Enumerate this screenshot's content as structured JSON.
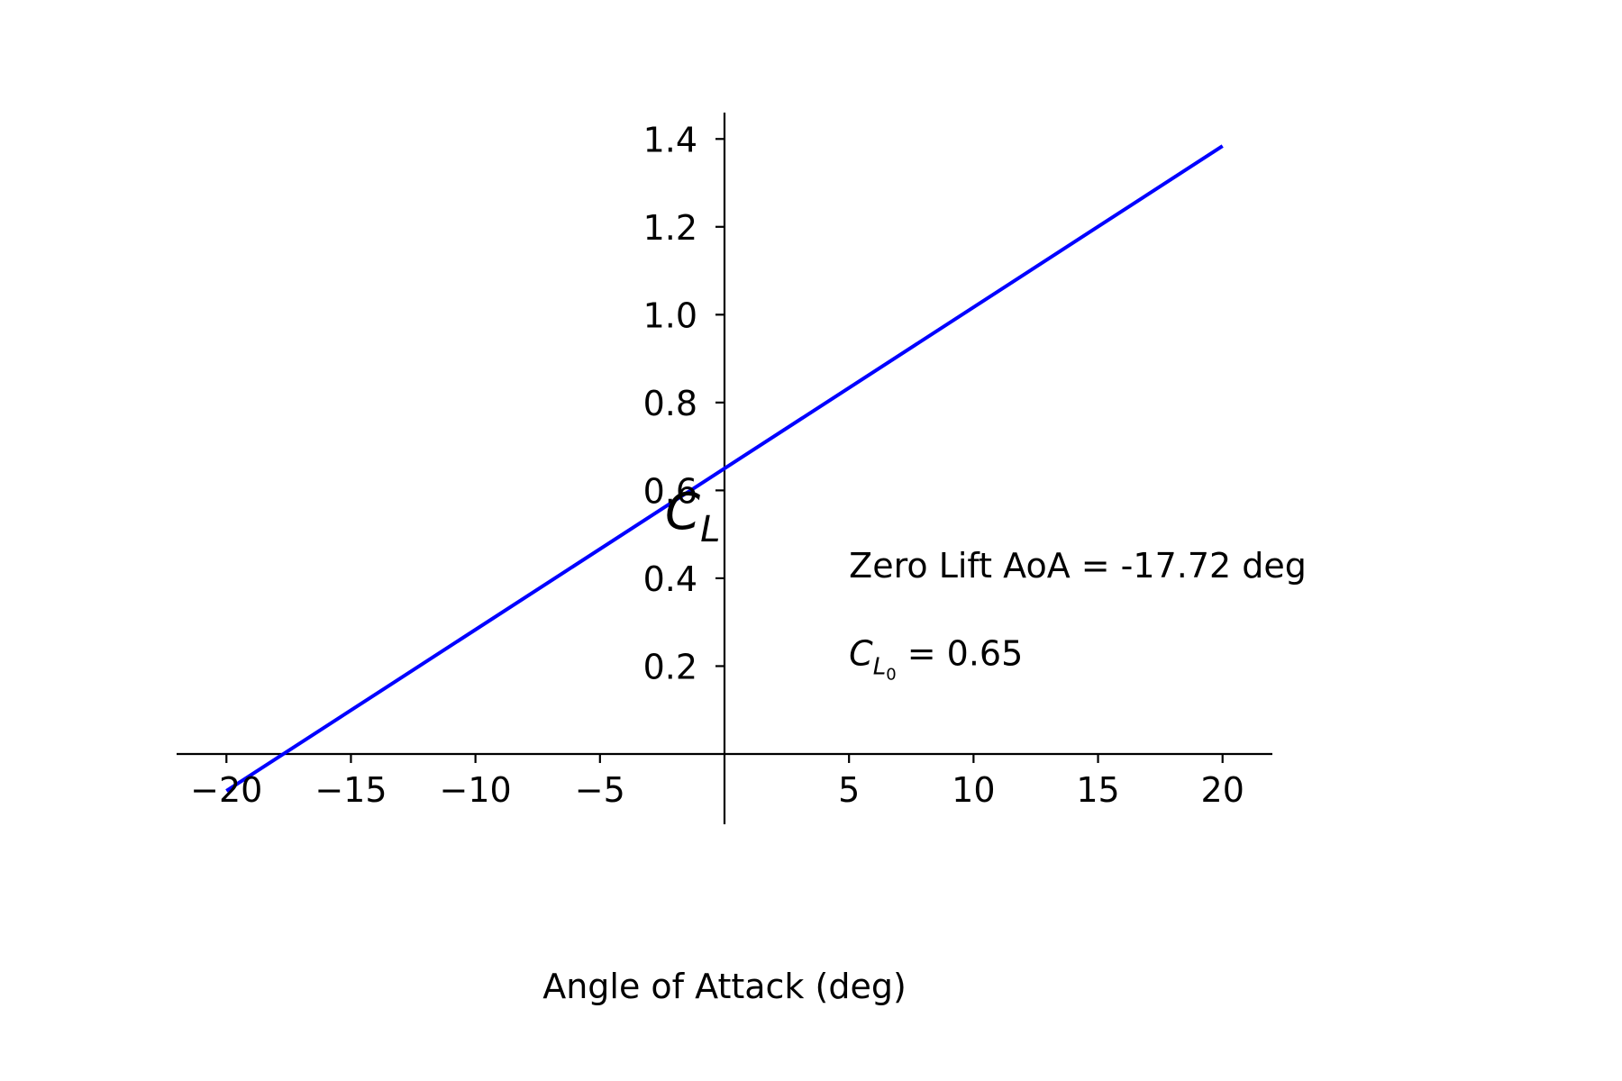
{
  "chart_data": {
    "type": "line",
    "title": "",
    "xlabel": "Angle of Attack (deg)",
    "ylabel": "C_L",
    "xlim": [
      -22,
      22
    ],
    "ylim": [
      -0.16,
      1.46
    ],
    "xticks": [
      -20,
      -15,
      -10,
      -5,
      5,
      10,
      15,
      20
    ],
    "xtick_labels": [
      "−20",
      "−15",
      "−10",
      "−5",
      "5",
      "10",
      "15",
      "20"
    ],
    "yticks": [
      0.2,
      0.4,
      0.6,
      0.8,
      1.0,
      1.2,
      1.4
    ],
    "ytick_labels": [
      "0.2",
      "0.4",
      "0.6",
      "0.8",
      "1.0",
      "1.2",
      "1.4"
    ],
    "grid": false,
    "series": [
      {
        "color": "#0000ff",
        "x": [
          -20,
          20
        ],
        "y": [
          -0.084,
          1.384
        ]
      }
    ],
    "annotations": {
      "zero_lift": "Zero Lift AoA = -17.72 deg",
      "cl0_symbol": "C",
      "cl0_sub1": "L",
      "cl0_sub2": "0",
      "cl0_value": " = 0.65"
    }
  }
}
